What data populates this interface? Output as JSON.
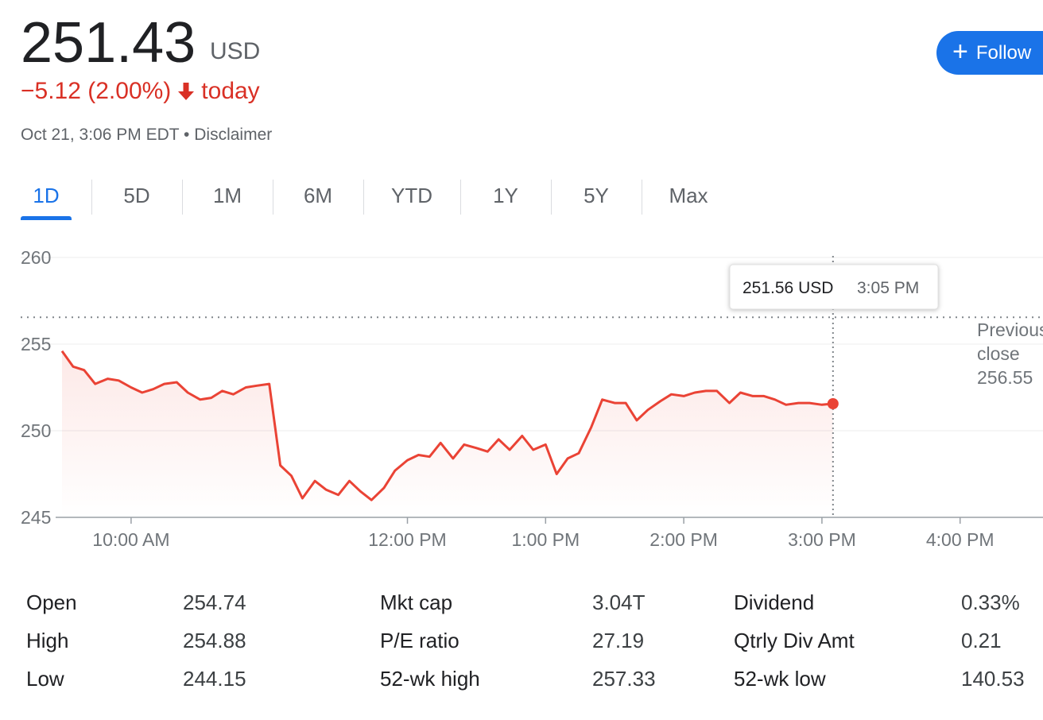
{
  "quote": {
    "price": "251.43",
    "currency": "USD",
    "change": "−5.12 (2.00%)",
    "change_period": "today",
    "timestamp": "Oct 21, 3:06 PM EDT",
    "separator": "•",
    "disclaimer": "Disclaimer",
    "down_color": "#d93025"
  },
  "follow_button": {
    "icon": "plus-icon",
    "label": "Follow"
  },
  "range_tabs": [
    {
      "label": "1D",
      "active": true
    },
    {
      "label": "5D",
      "active": false
    },
    {
      "label": "1M",
      "active": false
    },
    {
      "label": "6M",
      "active": false
    },
    {
      "label": "YTD",
      "active": false
    },
    {
      "label": "1Y",
      "active": false
    },
    {
      "label": "5Y",
      "active": false
    },
    {
      "label": "Max",
      "active": false
    }
  ],
  "tooltip": {
    "price": "251.56 USD",
    "time": "3:05 PM"
  },
  "previous_close": {
    "label_line1": "Previous",
    "label_line2": "close",
    "value": "256.55"
  },
  "chart_data": {
    "type": "line",
    "y_ticks": [
      "260",
      "255",
      "250",
      "245"
    ],
    "ylim": [
      245,
      260
    ],
    "x_ticks": [
      "10:00 AM",
      "12:00 PM",
      "1:00 PM",
      "2:00 PM",
      "3:00 PM",
      "4:00 PM"
    ],
    "x_tick_hours": [
      10,
      12,
      13,
      14,
      15,
      16
    ],
    "xlim_hours": [
      9.5,
      16.6
    ],
    "line_color": "#ea4335",
    "previous_close_value": 256.55,
    "hover_hour": 15.08,
    "series": [
      {
        "x_hours": [
          9.5,
          9.58,
          9.66,
          9.74,
          9.83,
          9.91,
          10.0,
          10.08,
          10.16,
          10.24,
          10.33,
          10.41,
          10.5,
          10.58,
          10.66,
          10.74,
          10.83,
          10.91,
          11.0,
          11.08,
          11.16,
          11.24,
          11.33,
          11.41,
          11.5,
          11.58,
          11.66,
          11.74,
          11.83,
          11.91,
          12.0,
          12.08,
          12.16,
          12.24,
          12.33,
          12.41,
          12.5,
          12.58,
          12.66,
          12.74,
          12.83,
          12.91,
          13.0,
          13.08,
          13.16,
          13.24,
          13.33,
          13.41,
          13.5,
          13.58,
          13.66,
          13.74,
          13.83,
          13.91,
          14.0,
          14.08,
          14.16,
          14.24,
          14.33,
          14.41,
          14.5,
          14.58,
          14.66,
          14.74,
          14.83,
          14.91,
          15.0,
          15.08
        ],
        "values": [
          254.6,
          253.7,
          253.5,
          252.7,
          253.0,
          252.9,
          252.5,
          252.2,
          252.4,
          252.7,
          252.8,
          252.2,
          251.8,
          251.9,
          252.3,
          252.1,
          252.5,
          252.6,
          252.7,
          248.0,
          247.4,
          246.1,
          247.1,
          246.6,
          246.3,
          247.1,
          246.5,
          246.0,
          246.7,
          247.7,
          248.3,
          248.6,
          248.5,
          249.3,
          248.4,
          249.2,
          249.0,
          248.8,
          249.5,
          248.9,
          249.7,
          248.9,
          249.2,
          247.5,
          248.4,
          248.7,
          250.2,
          251.8,
          251.6,
          251.6,
          250.6,
          251.2,
          251.7,
          252.1,
          252.0,
          252.2,
          252.3,
          252.3,
          251.6,
          252.2,
          252.0,
          252.0,
          251.8,
          251.5,
          251.6,
          251.6,
          251.5,
          251.56
        ]
      }
    ]
  },
  "stats": {
    "col1": [
      {
        "label": "Open",
        "value": "254.74"
      },
      {
        "label": "High",
        "value": "254.88"
      },
      {
        "label": "Low",
        "value": "244.15"
      }
    ],
    "col2": [
      {
        "label": "Mkt cap",
        "value": "3.04T"
      },
      {
        "label": "P/E ratio",
        "value": "27.19"
      },
      {
        "label": "52-wk high",
        "value": "257.33"
      }
    ],
    "col3": [
      {
        "label": "Dividend",
        "value": "0.33%"
      },
      {
        "label": "Qtrly Div Amt",
        "value": "0.21"
      },
      {
        "label": "52-wk low",
        "value": "140.53"
      }
    ]
  }
}
